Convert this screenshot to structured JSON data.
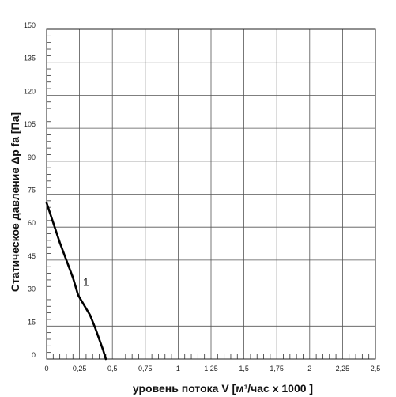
{
  "chart_data": {
    "type": "line",
    "xlabel": "уровень потока  V [м³/час х 1000 ]",
    "ylabel": "Статическое давление  Δp fa [Па]",
    "xlim": [
      0,
      2.5
    ],
    "ylim": [
      0,
      150
    ],
    "x_ticks": [
      "0",
      "0,25",
      "0,5",
      "0,75",
      "1",
      "1,25",
      "1,5",
      "1,75",
      "2",
      "2,25",
      "2,5"
    ],
    "y_ticks": [
      "0",
      "15",
      "30",
      "45",
      "60",
      "75",
      "90",
      "105",
      "120",
      "135",
      "150"
    ],
    "grid": true,
    "series": [
      {
        "name": "1",
        "color": "#000000",
        "x": [
          0.0,
          0.05,
          0.1,
          0.15,
          0.2,
          0.24,
          0.28,
          0.33,
          0.37,
          0.4,
          0.43,
          0.45
        ],
        "y": [
          71,
          62,
          53,
          45,
          37,
          29,
          25,
          20,
          14,
          9,
          4,
          0
        ]
      }
    ]
  }
}
